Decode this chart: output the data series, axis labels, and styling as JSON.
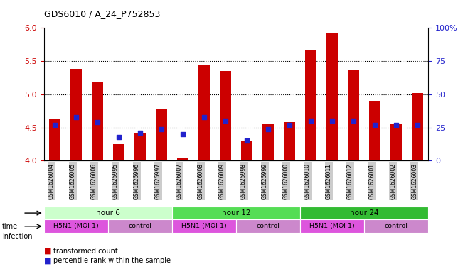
{
  "title": "GDS6010 / A_24_P752853",
  "samples": [
    "GSM1626004",
    "GSM1626005",
    "GSM1626006",
    "GSM1625995",
    "GSM1625996",
    "GSM1625997",
    "GSM1626007",
    "GSM1626008",
    "GSM1626009",
    "GSM1625998",
    "GSM1625999",
    "GSM1626000",
    "GSM1626010",
    "GSM1626011",
    "GSM1626012",
    "GSM1626001",
    "GSM1626002",
    "GSM1626003"
  ],
  "transformed_count": [
    4.62,
    5.38,
    5.18,
    4.25,
    4.42,
    4.78,
    4.04,
    5.45,
    5.35,
    4.3,
    4.55,
    4.58,
    5.67,
    5.92,
    5.36,
    4.9,
    4.55,
    5.02
  ],
  "percentile_rank": [
    27,
    33,
    29,
    18,
    21,
    24,
    20,
    33,
    30,
    15,
    24,
    27,
    30,
    30,
    30,
    27,
    27,
    27
  ],
  "bar_color": "#cc0000",
  "dot_color": "#2222cc",
  "ylim_left": [
    4.0,
    6.0
  ],
  "ylim_right": [
    0,
    100
  ],
  "yticks_left": [
    4.0,
    4.5,
    5.0,
    5.5,
    6.0
  ],
  "yticks_right": [
    0,
    25,
    50,
    75,
    100
  ],
  "hline_values": [
    4.5,
    5.0,
    5.5
  ],
  "time_groups": [
    {
      "label": "hour 6",
      "start": 0,
      "end": 6,
      "color": "#ccffcc"
    },
    {
      "label": "hour 12",
      "start": 6,
      "end": 12,
      "color": "#55dd55"
    },
    {
      "label": "hour 24",
      "start": 12,
      "end": 18,
      "color": "#33bb33"
    }
  ],
  "infection_groups": [
    {
      "label": "H5N1 (MOI 1)",
      "start": 0,
      "end": 3,
      "color": "#dd55dd"
    },
    {
      "label": "control",
      "start": 3,
      "end": 6,
      "color": "#cc88cc"
    },
    {
      "label": "H5N1 (MOI 1)",
      "start": 6,
      "end": 9,
      "color": "#dd55dd"
    },
    {
      "label": "control",
      "start": 9,
      "end": 12,
      "color": "#cc88cc"
    },
    {
      "label": "H5N1 (MOI 1)",
      "start": 12,
      "end": 15,
      "color": "#dd55dd"
    },
    {
      "label": "control",
      "start": 15,
      "end": 18,
      "color": "#cc88cc"
    }
  ],
  "bg_color": "#ffffff",
  "sample_bg_color": "#cccccc",
  "tick_color_left": "#cc0000",
  "tick_color_right": "#2222cc",
  "bar_width": 0.55
}
